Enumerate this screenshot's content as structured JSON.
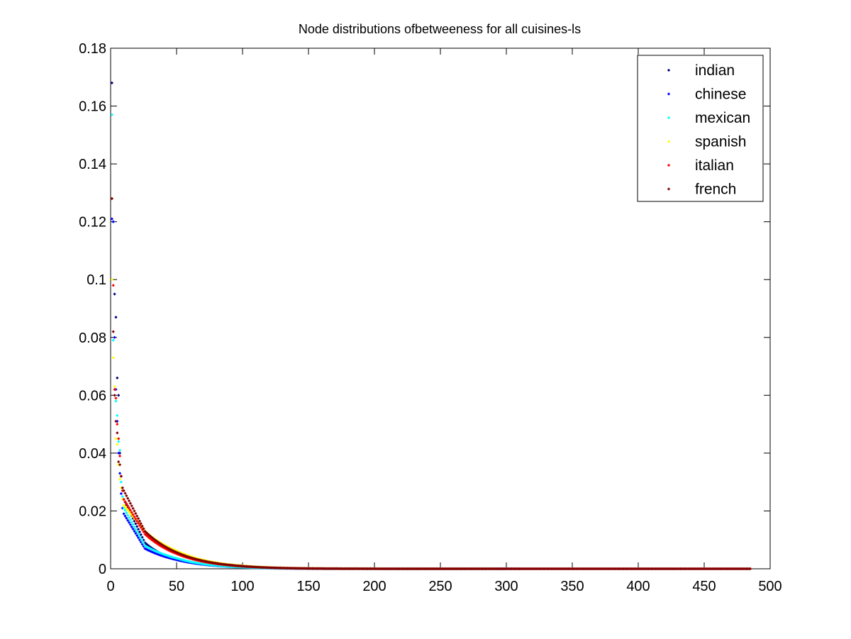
{
  "chart_data": {
    "type": "scatter",
    "title": "Node distributions ofbetweeness for all cuisines-ls",
    "xlabel": "",
    "ylabel": "",
    "xlim": [
      0,
      500
    ],
    "ylim": [
      0,
      0.18
    ],
    "xticks": [
      "0",
      "50",
      "100",
      "150",
      "200",
      "250",
      "300",
      "350",
      "400",
      "450",
      "500"
    ],
    "yticks": [
      "0",
      "0.02",
      "0.04",
      "0.06",
      "0.08",
      "0.1",
      "0.12",
      "0.14",
      "0.16",
      "0.18"
    ],
    "legend_position": "top-right",
    "grid": false,
    "marker": "point",
    "series": [
      {
        "name": "indian",
        "color": "#00007f",
        "n": 300,
        "start_values": [
          0.168,
          0.12,
          0.095,
          0.087,
          0.066,
          0.06,
          0.04,
          0.032,
          0.028,
          0.024
        ],
        "tail": {
          "at_25": 0.009,
          "at_50": 0.003,
          "at_100": 0.0005
        }
      },
      {
        "name": "chinese",
        "color": "#0000ff",
        "n": 310,
        "start_values": [
          0.121,
          0.12,
          0.08,
          0.062,
          0.051,
          0.04,
          0.033,
          0.026,
          0.021,
          0.019
        ],
        "tail": {
          "at_25": 0.007,
          "at_50": 0.003,
          "at_100": 0.0005
        }
      },
      {
        "name": "mexican",
        "color": "#00ffff",
        "n": 300,
        "start_values": [
          0.157,
          0.079,
          0.062,
          0.058,
          0.053,
          0.044,
          0.041,
          0.03,
          0.025,
          0.021
        ],
        "tail": {
          "at_25": 0.008,
          "at_50": 0.0035,
          "at_100": 0.0005
        }
      },
      {
        "name": "spanish",
        "color": "#ffff00",
        "n": 290,
        "start_values": [
          0.1,
          0.073,
          0.063,
          0.045,
          0.043,
          0.036,
          0.031,
          0.028,
          0.024,
          0.022
        ],
        "tail": {
          "at_25": 0.013,
          "at_50": 0.006,
          "at_100": 0.001
        }
      },
      {
        "name": "italian",
        "color": "#ff0000",
        "n": 485,
        "start_values": [
          0.128,
          0.098,
          0.062,
          0.059,
          0.05,
          0.045,
          0.039,
          0.032,
          0.027,
          0.024
        ],
        "tail": {
          "at_25": 0.012,
          "at_50": 0.005,
          "at_100": 0.0008
        }
      },
      {
        "name": "french",
        "color": "#7f0000",
        "n": 485,
        "start_values": [
          0.128,
          0.082,
          0.06,
          0.051,
          0.047,
          0.037,
          0.036,
          0.032,
          0.028,
          0.027
        ],
        "tail": {
          "at_25": 0.013,
          "at_50": 0.0055,
          "at_100": 0.0009
        }
      }
    ]
  }
}
